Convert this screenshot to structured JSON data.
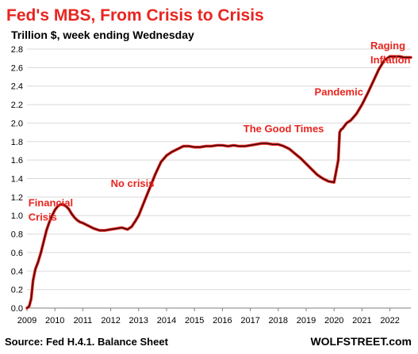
{
  "chart_data": {
    "type": "line",
    "title": "Fed's MBS, From Crisis to Crisis",
    "subtitle": "Trillion $, week ending Wednesday",
    "source": "Source: Fed H.4.1. Balance Sheet",
    "brand": "WOLFSTREET.com",
    "xlabel": "",
    "ylabel": "",
    "xlim": [
      2009.0,
      2022.75
    ],
    "ylim": [
      0.0,
      2.8
    ],
    "x_ticks": [
      "2009",
      "2010",
      "2011",
      "2012",
      "2013",
      "2014",
      "2015",
      "2016",
      "2017",
      "2018",
      "2019",
      "2020",
      "2021",
      "2022"
    ],
    "y_ticks": [
      "0.0",
      "0.2",
      "0.4",
      "0.6",
      "0.8",
      "1.0",
      "1.2",
      "1.4",
      "1.6",
      "1.8",
      "2.0",
      "2.2",
      "2.4",
      "2.6",
      "2.8"
    ],
    "grid": "horizontal",
    "colors": {
      "title": "#e8251f",
      "line_outer": "#e8251f",
      "line_inner": "#3a0a0a",
      "grid": "#d9d9d9",
      "annotation": "#e8251f"
    },
    "annotations": [
      {
        "lines": [
          "Financial",
          "Crisis"
        ],
        "x": 2009.05,
        "y": 1.1
      },
      {
        "lines": [
          "No crisis"
        ],
        "x": 2012.0,
        "y": 1.31
      },
      {
        "lines": [
          "The Good Times"
        ],
        "x": 2016.75,
        "y": 1.9
      },
      {
        "lines": [
          "Pandemic"
        ],
        "x": 2019.3,
        "y": 2.3
      },
      {
        "lines": [
          "Raging",
          "Inflation"
        ],
        "x": 2021.3,
        "y": 2.8
      }
    ],
    "series": [
      {
        "x": [
          2009.0,
          2009.08,
          2009.15,
          2009.22,
          2009.3,
          2009.4,
          2009.5,
          2009.6,
          2009.7,
          2009.8,
          2009.9,
          2010.0,
          2010.1,
          2010.2,
          2010.3,
          2010.4,
          2010.5,
          2010.6,
          2010.7,
          2010.8,
          2010.9,
          2011.0,
          2011.2,
          2011.4,
          2011.6,
          2011.8,
          2012.0,
          2012.2,
          2012.4,
          2012.6,
          2012.75,
          2012.9,
          2013.0,
          2013.2,
          2013.4,
          2013.6,
          2013.8,
          2014.0,
          2014.2,
          2014.4,
          2014.6,
          2014.8,
          2015.0,
          2015.2,
          2015.4,
          2015.6,
          2015.8,
          2016.0,
          2016.2,
          2016.4,
          2016.6,
          2016.8,
          2017.0,
          2017.2,
          2017.4,
          2017.6,
          2017.8,
          2018.0,
          2018.2,
          2018.4,
          2018.6,
          2018.8,
          2019.0,
          2019.2,
          2019.4,
          2019.6,
          2019.8,
          2020.0,
          2020.15,
          2020.2,
          2020.25,
          2020.3,
          2020.35,
          2020.45,
          2020.6,
          2020.8,
          2021.0,
          2021.2,
          2021.4,
          2021.6,
          2021.8,
          2022.0,
          2022.2,
          2022.35,
          2022.5,
          2022.75
        ],
        "y": [
          0.0,
          0.02,
          0.1,
          0.3,
          0.42,
          0.5,
          0.6,
          0.72,
          0.84,
          0.93,
          1.0,
          1.06,
          1.1,
          1.12,
          1.12,
          1.1,
          1.07,
          1.02,
          0.98,
          0.95,
          0.93,
          0.92,
          0.89,
          0.86,
          0.84,
          0.84,
          0.85,
          0.86,
          0.87,
          0.85,
          0.88,
          0.95,
          1.0,
          1.15,
          1.3,
          1.45,
          1.58,
          1.65,
          1.69,
          1.72,
          1.75,
          1.75,
          1.74,
          1.74,
          1.75,
          1.75,
          1.76,
          1.76,
          1.75,
          1.76,
          1.75,
          1.75,
          1.76,
          1.77,
          1.78,
          1.78,
          1.77,
          1.77,
          1.75,
          1.72,
          1.67,
          1.62,
          1.56,
          1.5,
          1.44,
          1.4,
          1.37,
          1.36,
          1.6,
          1.9,
          1.93,
          1.94,
          1.96,
          2.0,
          2.03,
          2.1,
          2.2,
          2.32,
          2.45,
          2.58,
          2.68,
          2.72,
          2.72,
          2.72,
          2.71,
          2.71
        ]
      }
    ]
  }
}
